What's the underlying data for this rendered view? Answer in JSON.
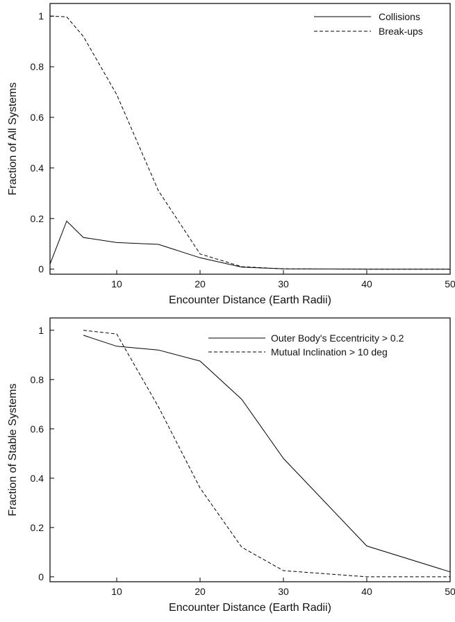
{
  "chart_data": [
    {
      "type": "line",
      "title": "",
      "xlabel": "Encounter Distance (Earth Radii)",
      "ylabel": "Fraction of All Systems",
      "xlim": [
        2,
        50
      ],
      "ylim": [
        -0.02,
        1.05
      ],
      "xticks": [
        10,
        20,
        30,
        40,
        50
      ],
      "yticks": [
        0,
        0.2,
        0.4,
        0.6,
        0.8,
        1
      ],
      "ytick_labels": [
        "0",
        "0.2",
        "0.4",
        "0.6",
        "0.8",
        "1"
      ],
      "grid": false,
      "legend_position": "top-right",
      "series": [
        {
          "name": "Collisions",
          "style": "solid",
          "x": [
            2,
            4,
            6,
            10,
            15,
            20,
            25,
            30,
            40,
            50
          ],
          "y": [
            0.02,
            0.19,
            0.125,
            0.105,
            0.098,
            0.045,
            0.008,
            0.001,
            0,
            0
          ]
        },
        {
          "name": "Break-ups",
          "style": "dashed",
          "x": [
            2,
            4,
            6,
            10,
            15,
            20,
            25,
            30,
            40,
            50
          ],
          "y": [
            1.0,
            0.997,
            0.92,
            0.69,
            0.31,
            0.06,
            0.01,
            0.001,
            0,
            0
          ]
        }
      ]
    },
    {
      "type": "line",
      "title": "",
      "xlabel": "Encounter Distance (Earth Radii)",
      "ylabel": "Fraction of Stable Systems",
      "xlim": [
        2,
        50
      ],
      "ylim": [
        -0.02,
        1.05
      ],
      "xticks": [
        10,
        20,
        30,
        40,
        50
      ],
      "yticks": [
        0,
        0.2,
        0.4,
        0.6,
        0.8,
        1
      ],
      "ytick_labels": [
        "0",
        "0.2",
        "0.4",
        "0.6",
        "0.8",
        "1"
      ],
      "grid": false,
      "legend_position": "top-right",
      "series": [
        {
          "name": "Outer Body's Eccentricity > 0.2",
          "style": "solid",
          "x": [
            6,
            10,
            15,
            20,
            25,
            30,
            40,
            50
          ],
          "y": [
            0.98,
            0.935,
            0.92,
            0.875,
            0.72,
            0.48,
            0.125,
            0.02
          ]
        },
        {
          "name": "Mutual Inclination > 10 deg",
          "style": "dashed",
          "x": [
            6,
            10,
            15,
            20,
            25,
            30,
            40,
            50
          ],
          "y": [
            1.0,
            0.985,
            0.69,
            0.36,
            0.12,
            0.025,
            0.0,
            0.0
          ]
        }
      ]
    }
  ]
}
